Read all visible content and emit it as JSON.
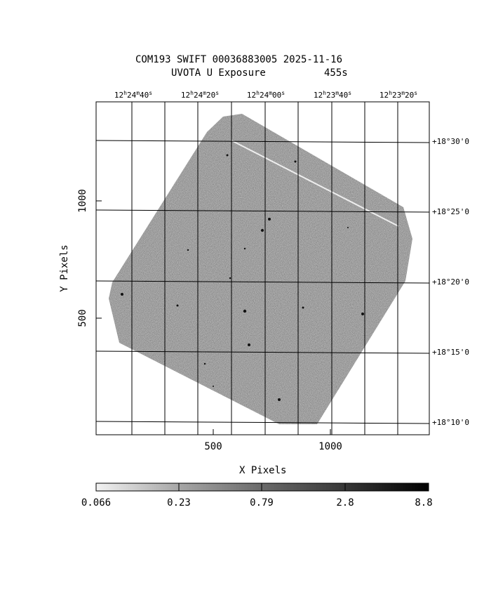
{
  "header": {
    "title_line1": "COM193 SWIFT 00036883005 2025-11-16",
    "title_filter": "UVOTA U Exposure",
    "title_exposure": "455s"
  },
  "axes": {
    "xlabel": "X Pixels",
    "ylabel": "Y Pixels",
    "x_ticks": [
      "500",
      "1000"
    ],
    "y_ticks": [
      "500",
      "1000"
    ],
    "ra_labels": [
      {
        "h": "12",
        "m": "24",
        "s": "40"
      },
      {
        "h": "12",
        "m": "24",
        "s": "20"
      },
      {
        "h": "12",
        "m": "24",
        "s": "00"
      },
      {
        "h": "12",
        "m": "23",
        "s": "40"
      },
      {
        "h": "12",
        "m": "23",
        "s": "20"
      }
    ],
    "dec_labels": [
      "+18°30'0",
      "+18°25'0",
      "+18°20'0",
      "+18°15'0",
      "+18°10'0"
    ]
  },
  "colorbar": {
    "labels": [
      "0.066",
      "0.23",
      "0.79",
      "2.8",
      "8.8"
    ]
  }
}
